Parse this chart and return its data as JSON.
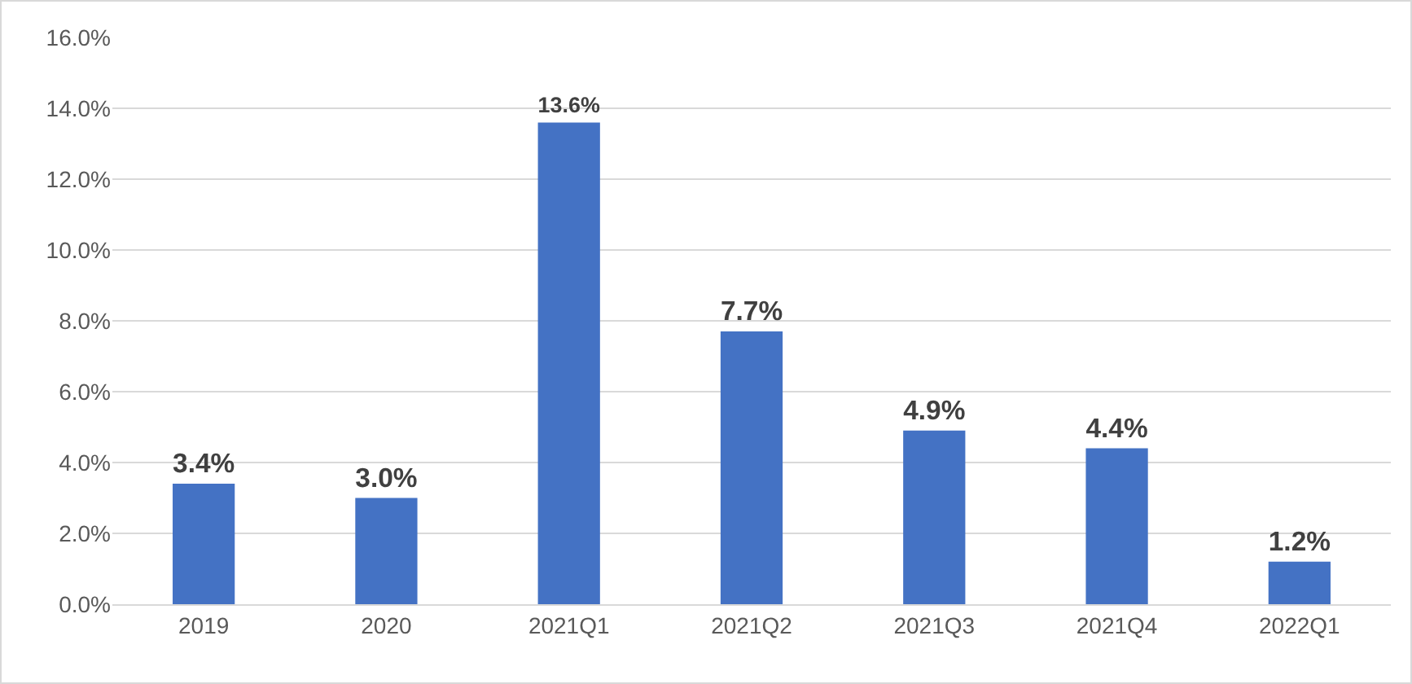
{
  "chart_data": {
    "type": "bar",
    "categories": [
      "2019",
      "2020",
      "2021Q1",
      "2021Q2",
      "2021Q3",
      "2021Q4",
      "2022Q1"
    ],
    "values": [
      3.4,
      3.0,
      13.6,
      7.7,
      4.9,
      4.4,
      1.2
    ],
    "value_labels": [
      "3.4%",
      "3.0%",
      "13.6%",
      "7.7%",
      "4.9%",
      "4.4%",
      "1.2%"
    ],
    "color": "#4472c4",
    "ylim": [
      0,
      16
    ],
    "yticks": [
      {
        "value": 0,
        "label": "0.0%"
      },
      {
        "value": 2,
        "label": "2.0%"
      },
      {
        "value": 4,
        "label": "4.0%"
      },
      {
        "value": 6,
        "label": "6.0%"
      },
      {
        "value": 8,
        "label": "8.0%"
      },
      {
        "value": 10,
        "label": "10.0%"
      },
      {
        "value": 12,
        "label": "12.0%"
      },
      {
        "value": 14,
        "label": "14.0%"
      },
      {
        "value": 16,
        "label": "16.0%"
      }
    ],
    "grid": "y",
    "legend": false
  }
}
